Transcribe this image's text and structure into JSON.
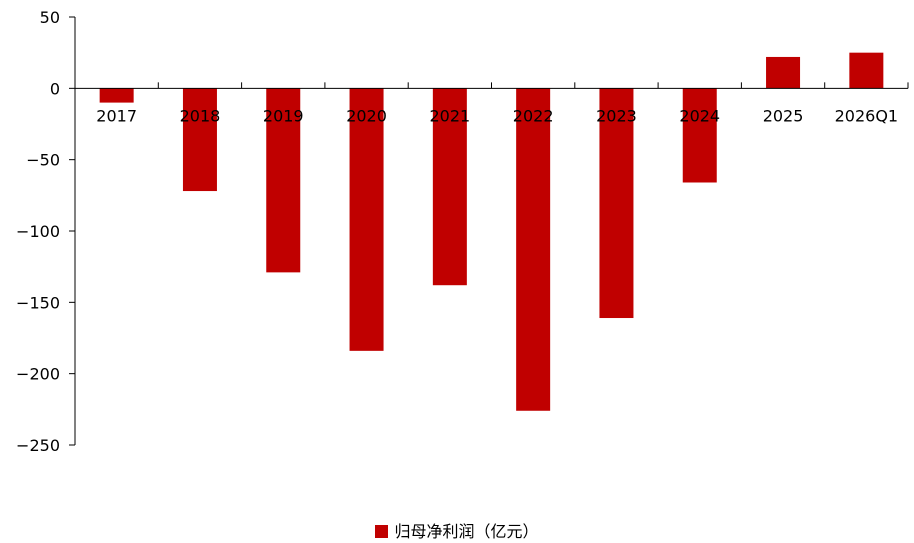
{
  "chart_data": {
    "type": "bar",
    "categories": [
      "2017",
      "2018",
      "2019",
      "2020",
      "2021",
      "2022",
      "2023",
      "2024",
      "2025",
      "2026Q1"
    ],
    "series": [
      {
        "name": "归母净利润（亿元）",
        "values": [
          -10,
          -72,
          -129,
          -184,
          -138,
          -226,
          -161,
          -66,
          22,
          25
        ],
        "color": "#c00000"
      }
    ],
    "ylim": [
      -250,
      50
    ],
    "yticks": [
      50,
      0,
      -50,
      -100,
      -150,
      -200,
      -250
    ],
    "legend_position": "bottom-center",
    "grid": false
  }
}
